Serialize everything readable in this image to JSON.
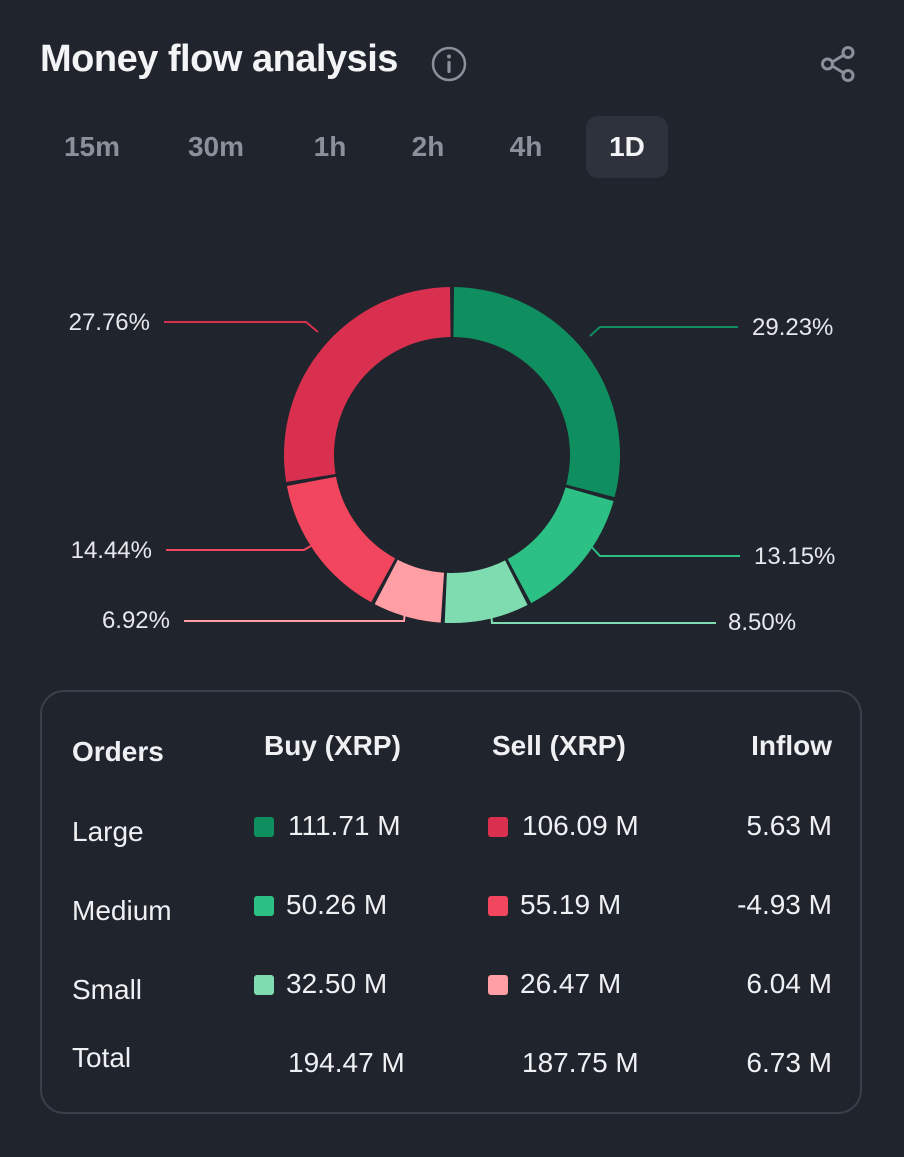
{
  "title": "Money flow analysis",
  "icons": {
    "info": "info-icon",
    "share": "share-icon"
  },
  "tabs": [
    {
      "label": "15m",
      "active": false
    },
    {
      "label": "30m",
      "active": false
    },
    {
      "label": "1h",
      "active": false
    },
    {
      "label": "2h",
      "active": false
    },
    {
      "label": "4h",
      "active": false
    },
    {
      "label": "1D",
      "active": true
    }
  ],
  "colors": {
    "buy_large": "#0f8f5f",
    "buy_medium": "#2cc084",
    "buy_small": "#7fdcb0",
    "sell_large": "#d9304f",
    "sell_medium": "#f2455e",
    "sell_small": "#ff9ea4"
  },
  "chart_data": {
    "type": "pie",
    "donut": true,
    "slices": [
      {
        "key": "buy_large",
        "value": 29.23,
        "label": "29.23%",
        "color": "#0f8f5f"
      },
      {
        "key": "buy_medium",
        "value": 13.15,
        "label": "13.15%",
        "color": "#2cc084"
      },
      {
        "key": "buy_small",
        "value": 8.5,
        "label": "8.50%",
        "color": "#7fdcb0"
      },
      {
        "key": "sell_small",
        "value": 6.92,
        "label": "6.92%",
        "color": "#ff9ea4"
      },
      {
        "key": "sell_medium",
        "value": 14.44,
        "label": "14.44%",
        "color": "#f2455e"
      },
      {
        "key": "sell_large",
        "value": 27.76,
        "label": "27.76%",
        "color": "#d9304f"
      }
    ]
  },
  "table": {
    "headers": {
      "orders": "Orders",
      "buy": "Buy (XRP)",
      "sell": "Sell (XRP)",
      "inflow": "Inflow"
    },
    "rows": [
      {
        "label": "Large",
        "buy": "111.71 M",
        "sell": "106.09 M",
        "inflow": "5.63 M",
        "buy_color": "#0f8f5f",
        "sell_color": "#d9304f"
      },
      {
        "label": "Medium",
        "buy": "50.26 M",
        "sell": "55.19 M",
        "inflow": "-4.93 M",
        "buy_color": "#2cc084",
        "sell_color": "#f2455e"
      },
      {
        "label": "Small",
        "buy": "32.50 M",
        "sell": "26.47 M",
        "inflow": "6.04 M",
        "buy_color": "#7fdcb0",
        "sell_color": "#ff9ea4"
      }
    ],
    "total": {
      "label": "Total",
      "buy": "194.47 M",
      "sell": "187.75 M",
      "inflow": "6.73 M"
    }
  }
}
